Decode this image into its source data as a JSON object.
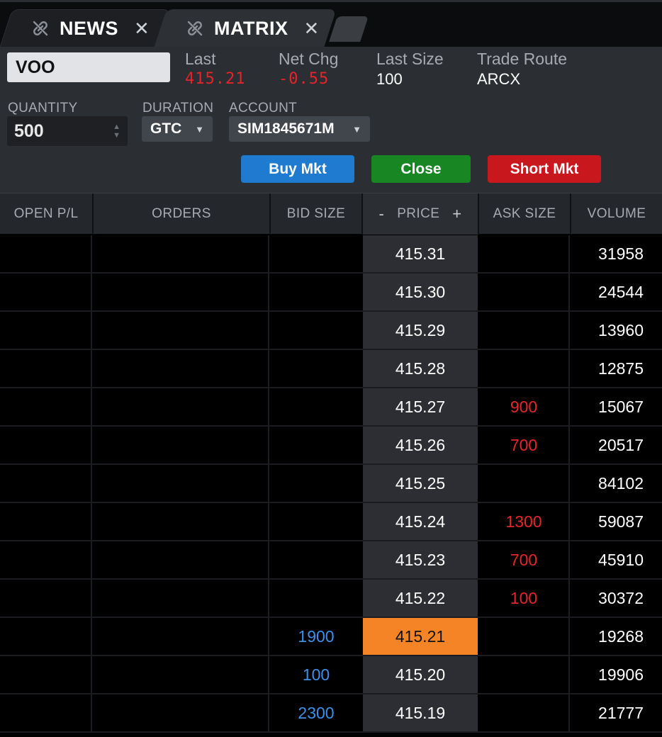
{
  "tabs": [
    {
      "label": "NEWS",
      "active": false
    },
    {
      "label": "MATRIX",
      "active": true
    }
  ],
  "symbol": "VOO",
  "quote": {
    "last_label": "Last",
    "last_value": "415.21",
    "netchg_label": "Net Chg",
    "netchg_value": "-0.55",
    "lastsize_label": "Last Size",
    "lastsize_value": "100",
    "route_label": "Trade Route",
    "route_value": "ARCX"
  },
  "order": {
    "quantity_label": "QUANTITY",
    "quantity_value": "500",
    "duration_label": "DURATION",
    "duration_value": "GTC",
    "account_label": "ACCOUNT",
    "account_value": "SIM1845671M"
  },
  "buttons": {
    "buy": "Buy Mkt",
    "close": "Close",
    "short": "Short Mkt"
  },
  "columns": {
    "open_pl": "OPEN P/L",
    "orders": "ORDERS",
    "bid_size": "BID SIZE",
    "price_minus": "-",
    "price": "PRICE",
    "price_plus": "+",
    "ask_size": "ASK SIZE",
    "volume": "VOLUME"
  },
  "colors": {
    "last_highlight": "#f58426",
    "bid": "#3d8fe8",
    "ask": "#e5252a",
    "buy": "#1f7bcf",
    "close": "#198624",
    "short": "#c9171e"
  },
  "ladder": [
    {
      "bid": "",
      "price": "415.31",
      "ask": "",
      "volume": "31958",
      "last": false
    },
    {
      "bid": "",
      "price": "415.30",
      "ask": "",
      "volume": "24544",
      "last": false
    },
    {
      "bid": "",
      "price": "415.29",
      "ask": "",
      "volume": "13960",
      "last": false
    },
    {
      "bid": "",
      "price": "415.28",
      "ask": "",
      "volume": "12875",
      "last": false
    },
    {
      "bid": "",
      "price": "415.27",
      "ask": "900",
      "volume": "15067",
      "last": false
    },
    {
      "bid": "",
      "price": "415.26",
      "ask": "700",
      "volume": "20517",
      "last": false
    },
    {
      "bid": "",
      "price": "415.25",
      "ask": "",
      "volume": "84102",
      "last": false
    },
    {
      "bid": "",
      "price": "415.24",
      "ask": "1300",
      "volume": "59087",
      "last": false
    },
    {
      "bid": "",
      "price": "415.23",
      "ask": "700",
      "volume": "45910",
      "last": false
    },
    {
      "bid": "",
      "price": "415.22",
      "ask": "100",
      "volume": "30372",
      "last": false
    },
    {
      "bid": "1900",
      "price": "415.21",
      "ask": "",
      "volume": "19268",
      "last": true
    },
    {
      "bid": "100",
      "price": "415.20",
      "ask": "",
      "volume": "19906",
      "last": false
    },
    {
      "bid": "2300",
      "price": "415.19",
      "ask": "",
      "volume": "21777",
      "last": false
    }
  ]
}
